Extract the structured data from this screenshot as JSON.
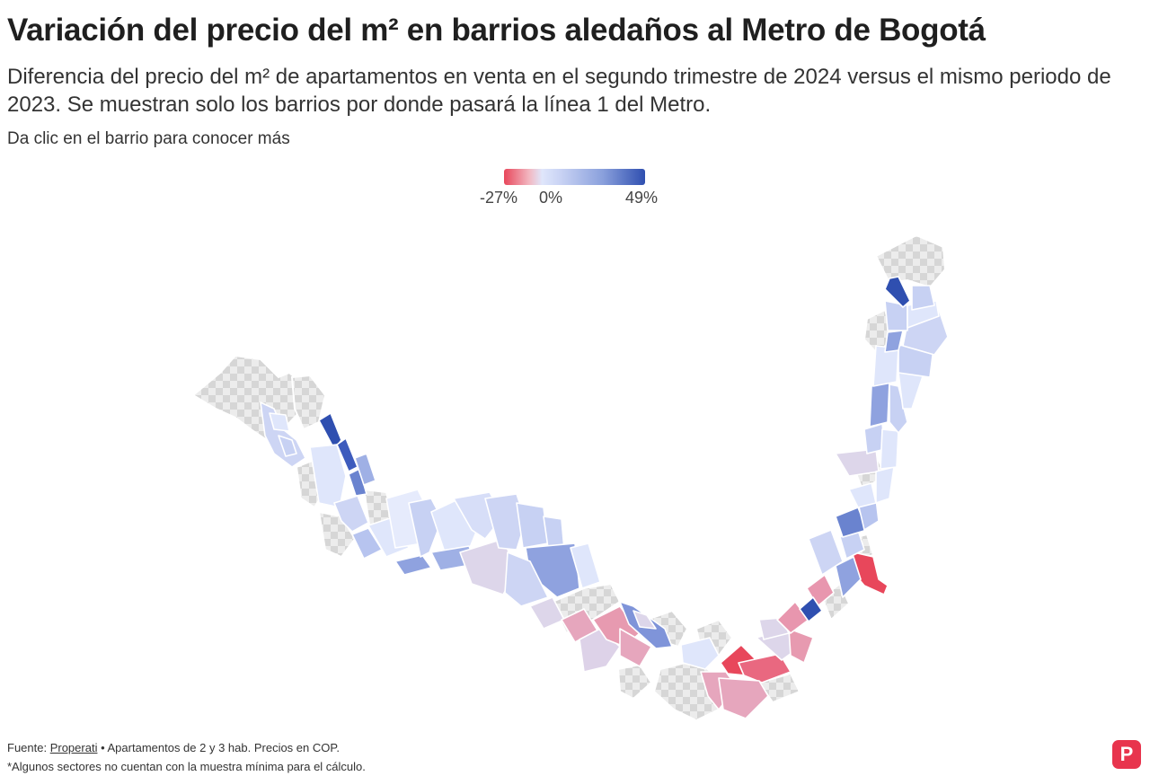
{
  "header": {
    "title": "Variación del precio del m² en barrios aledaños al Metro de Bogotá",
    "subtitle": "Diferencia del precio del m² de apartamentos en venta en el segundo trimestre de 2024 versus el mismo periodo de 2023. Se muestran solo los barrios por donde pasará la línea 1 del Metro.",
    "hint": "Da clic en el barrio para conocer más"
  },
  "legend": {
    "min_label": "-27%",
    "mid_label": "0%",
    "max_label": "49%",
    "min_value": -27,
    "max_value": 49,
    "colors": {
      "negative": "#e8475b",
      "neutral": "#dfe6fb",
      "positive": "#2f4fb0"
    }
  },
  "footer": {
    "source_prefix": "Fuente: ",
    "source_name": "Properati",
    "source_suffix": " • Apartamentos de 2 y 3 hab. Precios en COP.",
    "note": "*Algunos sectores no cuentan con la muestra mínima para el cálculo."
  },
  "brand": {
    "letter": "P",
    "color": "#e8344d"
  }
}
